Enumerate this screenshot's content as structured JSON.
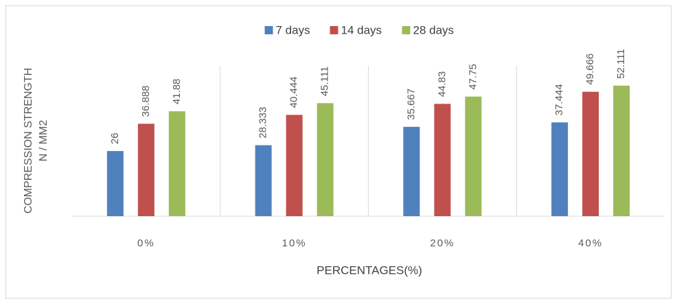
{
  "chart_data": {
    "type": "bar",
    "categories": [
      "0%",
      "10%",
      "20%",
      "40%"
    ],
    "series": [
      {
        "name": "7 days",
        "color": "#4f81bd",
        "values": [
          26,
          28.333,
          35.667,
          37.444
        ]
      },
      {
        "name": "14 days",
        "color": "#c0504d",
        "values": [
          36.888,
          40.444,
          44.83,
          49.666
        ]
      },
      {
        "name": "28 days",
        "color": "#9bbb59",
        "values": [
          41.88,
          45.111,
          47.75,
          52.111
        ]
      }
    ],
    "x_label": "PERCENTAGES(%)",
    "y_label": [
      "COMPRESSION STRENGTH",
      "N / MM2"
    ],
    "ylim": [
      0,
      60
    ]
  }
}
